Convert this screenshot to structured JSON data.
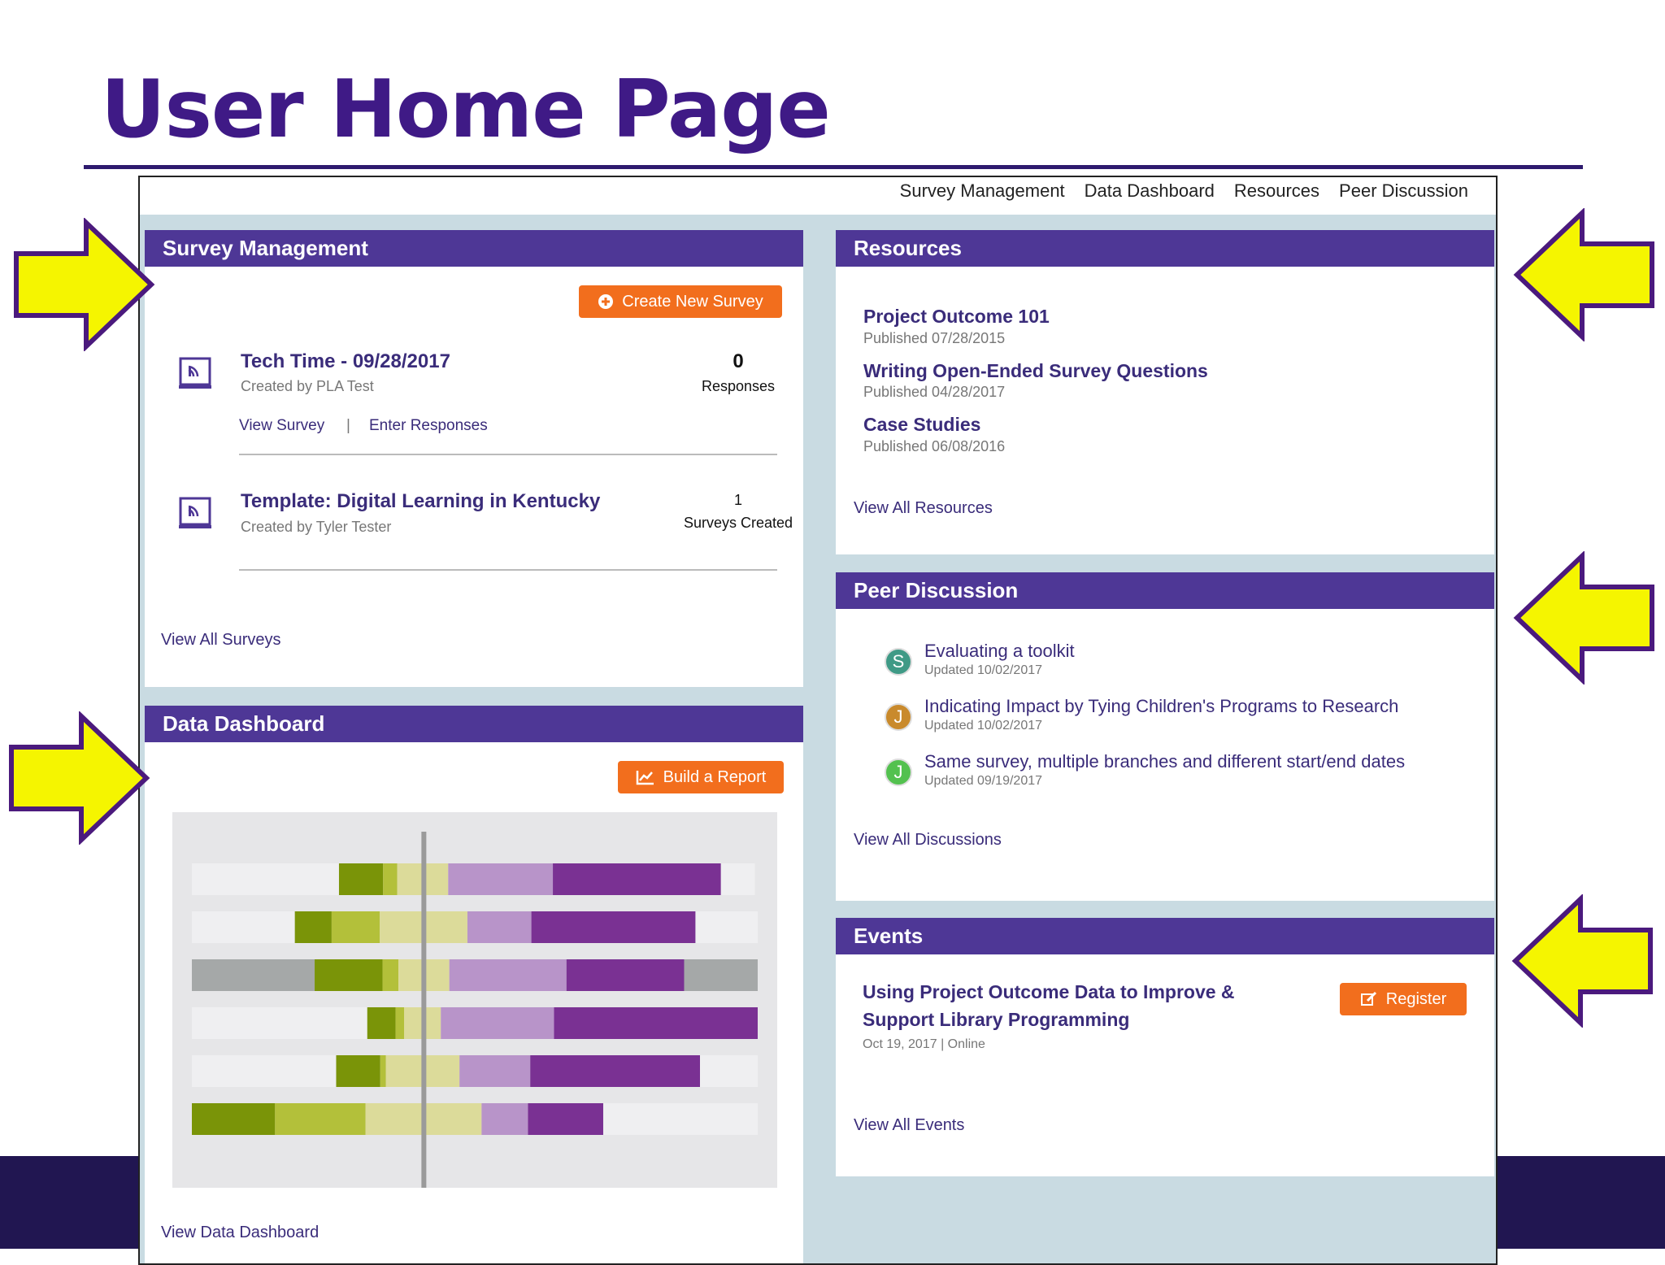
{
  "slide": {
    "title": "User Home Page"
  },
  "nav": {
    "items": [
      "Survey Management",
      "Data Dashboard",
      "Resources",
      "Peer Discussion"
    ]
  },
  "survey_management": {
    "header": "Survey Management",
    "create_button": "Create New Survey",
    "items": [
      {
        "title": "Tech Time - 09/28/2017",
        "creator": "Created by PLA Test",
        "count": "0",
        "count_label": "Responses",
        "link1": "View Survey",
        "sep": "|",
        "link2": "Enter Responses"
      },
      {
        "title": "Template: Digital Learning in Kentucky",
        "creator": "Created by Tyler Tester",
        "count": "1",
        "count_label": "Surveys Created"
      }
    ],
    "view_all": "View All Surveys"
  },
  "data_dashboard": {
    "header": "Data Dashboard",
    "build_button": "Build a Report",
    "view_all": "View Data Dashboard",
    "colors": {
      "neutral": "#efeff1",
      "gray": "#a5a8a8",
      "dark_green": "#7a9408",
      "mid_green": "#b3c03a",
      "pale_green": "#dcdb9a",
      "lavender": "#b894c9",
      "purple": "#7a3193"
    }
  },
  "chart_data": {
    "type": "bar",
    "title": "",
    "subtitle": "",
    "rows": [
      [
        [
          "neutral",
          0.26
        ],
        [
          "dark_green",
          0.078
        ],
        [
          "mid_green",
          0.025
        ],
        [
          "pale_green",
          0.09
        ],
        [
          "lavender",
          0.185
        ],
        [
          "purple",
          0.297
        ],
        [
          "neutral",
          0.06
        ]
      ],
      [
        [
          "neutral",
          0.182
        ],
        [
          "dark_green",
          0.065
        ],
        [
          "mid_green",
          0.085
        ],
        [
          "pale_green",
          0.155
        ],
        [
          "lavender",
          0.113
        ],
        [
          "purple",
          0.29
        ],
        [
          "neutral",
          0.11
        ]
      ],
      [
        [
          "gray",
          0.217
        ],
        [
          "dark_green",
          0.12
        ],
        [
          "mid_green",
          0.028
        ],
        [
          "pale_green",
          0.09
        ],
        [
          "lavender",
          0.207
        ],
        [
          "purple",
          0.208
        ],
        [
          "gray",
          0.13
        ]
      ],
      [
        [
          "neutral",
          0.31
        ],
        [
          "dark_green",
          0.05
        ],
        [
          "mid_green",
          0.015
        ],
        [
          "pale_green",
          0.065
        ],
        [
          "lavender",
          0.2
        ],
        [
          "purple",
          0.36
        ]
      ],
      [
        [
          "neutral",
          0.255
        ],
        [
          "dark_green",
          0.078
        ],
        [
          "mid_green",
          0.01
        ],
        [
          "pale_green",
          0.13
        ],
        [
          "lavender",
          0.125
        ],
        [
          "purple",
          0.3
        ],
        [
          "neutral",
          0.102
        ]
      ],
      [
        [
          "dark_green",
          0.147
        ],
        [
          "mid_green",
          0.16
        ],
        [
          "pale_green",
          0.205
        ],
        [
          "lavender",
          0.082
        ],
        [
          "purple",
          0.133
        ],
        [
          "neutral",
          0.273
        ]
      ]
    ],
    "midline": 0.41
  },
  "resources": {
    "header": "Resources",
    "items": [
      {
        "title": "Project Outcome 101",
        "date": "Published 07/28/2015"
      },
      {
        "title": "Writing Open-Ended Survey Questions",
        "date": "Published 04/28/2017"
      },
      {
        "title": "Case Studies",
        "date": "Published 06/08/2016"
      }
    ],
    "view_all": "View All Resources"
  },
  "peer_discussion": {
    "header": "Peer Discussion",
    "items": [
      {
        "initial": "S",
        "color": "#3f9a86",
        "title": "Evaluating a toolkit",
        "date": "Updated 10/02/2017"
      },
      {
        "initial": "J",
        "color": "#c98a2c",
        "title": "Indicating Impact by Tying Children's Programs to Research",
        "date": "Updated 10/02/2017"
      },
      {
        "initial": "J",
        "color": "#53c14f",
        "title": "Same survey, multiple branches and different start/end dates",
        "date": "Updated 09/19/2017"
      }
    ],
    "view_all": "View All Discussions"
  },
  "events": {
    "header": "Events",
    "title_line1": "Using Project Outcome Data to Improve &",
    "title_line2": "Support Library Programming",
    "meta": "Oct 19, 2017 | Online",
    "register": "Register",
    "view_all": "View All Events"
  },
  "colors": {
    "title": "#3f1a86",
    "panel_header": "#4e3796",
    "button": "#f26e1d",
    "link": "#3a2c7a",
    "arrow_fill": "#f5f500",
    "arrow_stroke": "#4b1a7d",
    "page_bg": "#c9dbe2",
    "bottom_bar": "#211651"
  }
}
